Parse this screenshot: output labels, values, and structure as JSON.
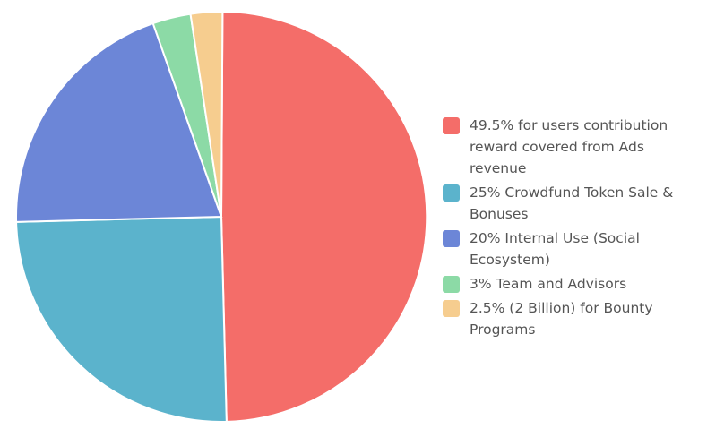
{
  "chart_data": {
    "type": "pie",
    "title": "",
    "categories": [
      "49.5% for users contribution reward covered from Ads revenue",
      "25% Crowdfund Token Sale & Bonuses",
      "20% Internal Use (Social Ecosystem)",
      "3% Team and Advisors",
      "2.5% (2 Billion) for Bounty Programs"
    ],
    "values": [
      49.5,
      25,
      20,
      3,
      2.5
    ],
    "colors": [
      "#f46d69",
      "#5bb3cc",
      "#6c86d7",
      "#8cdaa6",
      "#f6cd8f"
    ],
    "legend_position": "right"
  }
}
